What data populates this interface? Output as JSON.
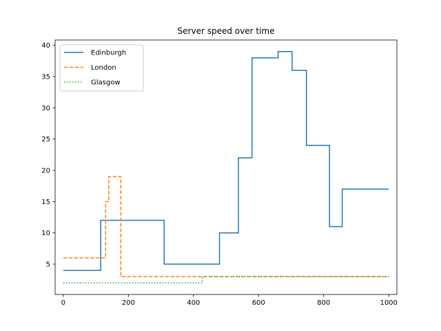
{
  "chart_data": {
    "type": "line",
    "title": "Server speed over time",
    "xlabel": "",
    "ylabel": "",
    "xlim": [
      -25,
      1025
    ],
    "ylim": [
      0.15,
      40.85
    ],
    "xticks": [
      0,
      200,
      400,
      600,
      800,
      1000
    ],
    "yticks": [
      5,
      10,
      15,
      20,
      25,
      30,
      35,
      40
    ],
    "grid": false,
    "legend_position": "top-left",
    "step": "post",
    "series": [
      {
        "name": "Edinburgh",
        "color": "#1f77b4",
        "style": "solid",
        "x": [
          0,
          115,
          310,
          480,
          538,
          580,
          660,
          703,
          747,
          818,
          857,
          1000
        ],
        "y": [
          4,
          12,
          5,
          10,
          22,
          38,
          39,
          36,
          24,
          11,
          17,
          17
        ]
      },
      {
        "name": "London",
        "color": "#ff7f0e",
        "style": "dashed",
        "x": [
          0,
          130,
          133,
          140,
          177,
          1000
        ],
        "y": [
          6,
          15,
          15,
          19,
          3,
          3
        ]
      },
      {
        "name": "Glasgow",
        "color": "#2ca02c",
        "style": "dotted",
        "x": [
          0,
          427,
          1000
        ],
        "y": [
          2,
          3,
          3
        ]
      }
    ]
  }
}
